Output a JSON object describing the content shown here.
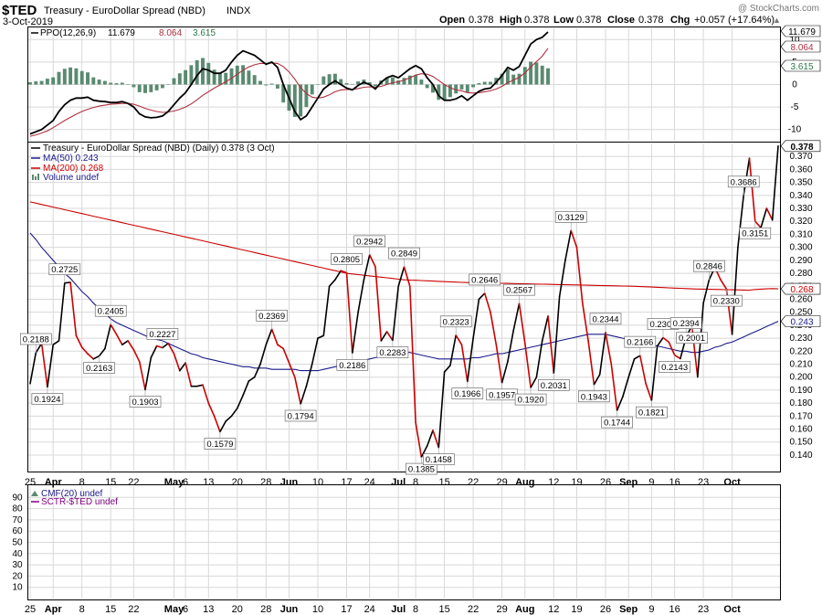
{
  "header": {
    "symbol": "$TED",
    "name": "Treasury - EuroDollar Spread (NBD)",
    "exchange": "INDX",
    "date": "3-Oct-2019",
    "watermark": "@ StockCharts.com",
    "ohlc": {
      "open_label": "Open",
      "open": "0.378",
      "high_label": "High",
      "high": "0.378",
      "low_label": "Low",
      "low": "0.378",
      "close_label": "Close",
      "close": "0.378",
      "chg_label": "Chg",
      "chg": "+0.057 (+17.64%)"
    },
    "chg_direction": "▲"
  },
  "colors": {
    "price_up": "#000000",
    "price_down": "#cc0000",
    "ma50": "#1a1a8c",
    "ma200": "#cc0000",
    "ppo_line": "#000000",
    "ppo_signal": "#b03040",
    "histogram": "#5a8a70",
    "grid": "#d8d8d8",
    "sctr": "#800080"
  },
  "chart_data": [
    {
      "type": "line",
      "panel": "ppo",
      "legend": "PPO(12,26,9) 11.679, 8.064, 3.615",
      "legend_parts": {
        "name": "PPO(12,26,9)",
        "ppo": "11.679",
        "signal": "8.064",
        "hist": "3.615"
      },
      "y_ticks": [
        -10,
        -5,
        0,
        5,
        10
      ],
      "ylim": [
        -12.5,
        12.5
      ],
      "last_values": {
        "ppo": "11.679",
        "signal": "8.064",
        "hist": "3.615"
      },
      "ppo": [
        -11,
        -10.5,
        -10,
        -9,
        -8,
        -6,
        -4.5,
        -3.5,
        -3,
        -3,
        -2.8,
        -3.5,
        -3.7,
        -3.8,
        -4,
        -4,
        -3.8,
        -4.2,
        -5,
        -6.5,
        -7.2,
        -7.4,
        -7.3,
        -7,
        -6,
        -4.5,
        -3,
        -1.8,
        0,
        2,
        3.5,
        3.2,
        2.5,
        2.5,
        3.2,
        5,
        6.5,
        7.5,
        7,
        6.5,
        5.5,
        4.5,
        5,
        3.8,
        0,
        -3,
        -6,
        -7.8,
        -7,
        -5,
        -3,
        -1,
        0,
        0.8,
        0,
        -0.8,
        -1.2,
        -0.2,
        0.5,
        0,
        -1,
        0.5,
        1.5,
        2,
        1.5,
        2.5,
        3.5,
        4.2,
        3.5,
        1.5,
        0,
        -2.5,
        -3.5,
        -3.5,
        -3.2,
        -2.5,
        -3.5,
        -2.5,
        -1.5,
        -1,
        -0.8,
        0.5,
        2,
        3.8,
        3.2,
        4,
        6.5,
        9,
        10,
        10.5,
        11.679
      ],
      "signal": [
        -11.5,
        -11.2,
        -10.8,
        -10.3,
        -9.6,
        -8.8,
        -8,
        -7.3,
        -6.6,
        -6,
        -5.5,
        -5.1,
        -4.8,
        -4.6,
        -4.4,
        -4.3,
        -4.2,
        -4.2,
        -4.4,
        -4.8,
        -5.3,
        -5.7,
        -6,
        -6.2,
        -6.1,
        -5.9,
        -5.5,
        -5,
        -4.3,
        -3.4,
        -2.4,
        -1.6,
        -0.8,
        -0.1,
        0.6,
        1.4,
        2.3,
        3.2,
        3.9,
        4.4,
        4.7,
        4.7,
        4.8,
        4.7,
        4,
        2.8,
        1.2,
        -0.7,
        -2,
        -2.8,
        -3,
        -2.8,
        -2.3,
        -1.6,
        -1.2,
        -1.1,
        -1.1,
        -0.9,
        -0.6,
        -0.5,
        -0.6,
        -0.4,
        0,
        0.4,
        0.6,
        1,
        1.5,
        2.1,
        2.4,
        2.3,
        1.8,
        0.9,
        0,
        -0.7,
        -1.2,
        -1.4,
        -1.8,
        -1.9,
        -1.8,
        -1.6,
        -1.4,
        -1,
        -0.4,
        0.4,
        1,
        1.6,
        2.6,
        3.9,
        5.1,
        6.3,
        8.064
      ]
    },
    {
      "type": "line",
      "panel": "price",
      "legend": "Treasury - EuroDollar Spread (NBD) (Daily) 0.378 (3 Oct)",
      "legend_ma50": "MA(50) 0.243",
      "legend_ma200": "MA(200) 0.268",
      "legend_volume": "Volume undef",
      "y_ticks": [
        0.14,
        0.15,
        0.16,
        0.17,
        0.18,
        0.19,
        0.2,
        0.21,
        0.22,
        0.23,
        0.24,
        0.25,
        0.26,
        0.27,
        0.28,
        0.29,
        0.3,
        0.31,
        0.32,
        0.33,
        0.34,
        0.35,
        0.36,
        0.37
      ],
      "ylim": [
        0.128,
        0.38
      ],
      "last_values": {
        "close": "0.378",
        "ma200": "0.268",
        "ma50": "0.243"
      },
      "price": [
        0.195,
        0.2188,
        0.226,
        0.1924,
        0.225,
        0.228,
        0.2725,
        0.273,
        0.232,
        0.223,
        0.218,
        0.214,
        0.2163,
        0.222,
        0.2405,
        0.233,
        0.225,
        0.228,
        0.221,
        0.212,
        0.1903,
        0.215,
        0.224,
        0.2227,
        0.226,
        0.218,
        0.205,
        0.211,
        0.193,
        0.193,
        0.194,
        0.18,
        0.17,
        0.1579,
        0.166,
        0.17,
        0.176,
        0.186,
        0.197,
        0.2,
        0.21,
        0.225,
        0.2369,
        0.225,
        0.222,
        0.211,
        0.2,
        0.1794,
        0.193,
        0.21,
        0.23,
        0.232,
        0.27,
        0.275,
        0.282,
        0.2805,
        0.2186,
        0.25,
        0.275,
        0.2942,
        0.285,
        0.228,
        0.235,
        0.2283,
        0.27,
        0.2849,
        0.27,
        0.165,
        0.1385,
        0.147,
        0.159,
        0.1458,
        0.204,
        0.209,
        0.2323,
        0.225,
        0.1966,
        0.23,
        0.26,
        0.2646,
        0.25,
        0.225,
        0.1957,
        0.212,
        0.236,
        0.2567,
        0.226,
        0.192,
        0.2,
        0.228,
        0.247,
        0.2031,
        0.262,
        0.29,
        0.3129,
        0.3,
        0.257,
        0.228,
        0.1943,
        0.202,
        0.2344,
        0.21,
        0.1744,
        0.185,
        0.2,
        0.214,
        0.2166,
        0.195,
        0.1821,
        0.224,
        0.2304,
        0.227,
        0.217,
        0.2143,
        0.231,
        0.2394,
        0.2001,
        0.257,
        0.275,
        0.2846,
        0.275,
        0.268,
        0.233,
        0.3,
        0.34,
        0.3686,
        0.32,
        0.3151,
        0.33,
        0.321,
        0.378
      ],
      "ma50": [
        0.311,
        0.306,
        0.3,
        0.295,
        0.29,
        0.285,
        0.28,
        0.276,
        0.271,
        0.266,
        0.262,
        0.257,
        0.253,
        0.249,
        0.245,
        0.242,
        0.24,
        0.238,
        0.236,
        0.234,
        0.232,
        0.23,
        0.229,
        0.228,
        0.226,
        0.224,
        0.222,
        0.22,
        0.218,
        0.217,
        0.215,
        0.214,
        0.213,
        0.212,
        0.211,
        0.21,
        0.209,
        0.208,
        0.208,
        0.207,
        0.207,
        0.207,
        0.206,
        0.206,
        0.206,
        0.206,
        0.206,
        0.205,
        0.205,
        0.205,
        0.205,
        0.206,
        0.207,
        0.208,
        0.209,
        0.21,
        0.211,
        0.212,
        0.213,
        0.214,
        0.215,
        0.216,
        0.216,
        0.217,
        0.218,
        0.219,
        0.219,
        0.218,
        0.217,
        0.216,
        0.215,
        0.214,
        0.214,
        0.214,
        0.214,
        0.214,
        0.214,
        0.215,
        0.215,
        0.216,
        0.217,
        0.218,
        0.218,
        0.219,
        0.22,
        0.221,
        0.222,
        0.223,
        0.224,
        0.225,
        0.226,
        0.227,
        0.228,
        0.229,
        0.23,
        0.231,
        0.232,
        0.233,
        0.233,
        0.233,
        0.233,
        0.232,
        0.231,
        0.23,
        0.229,
        0.228,
        0.227,
        0.226,
        0.225,
        0.224,
        0.223,
        0.222,
        0.221,
        0.22,
        0.22,
        0.219,
        0.219,
        0.22,
        0.221,
        0.223,
        0.224,
        0.226,
        0.227,
        0.229,
        0.231,
        0.233,
        0.235,
        0.237,
        0.239,
        0.241,
        0.243
      ],
      "ma200": [
        0.335,
        0.334,
        0.333,
        0.332,
        0.331,
        0.33,
        0.329,
        0.328,
        0.327,
        0.326,
        0.325,
        0.324,
        0.323,
        0.322,
        0.321,
        0.32,
        0.319,
        0.318,
        0.317,
        0.316,
        0.315,
        0.314,
        0.313,
        0.312,
        0.311,
        0.31,
        0.309,
        0.308,
        0.307,
        0.306,
        0.305,
        0.304,
        0.303,
        0.302,
        0.301,
        0.3,
        0.299,
        0.298,
        0.297,
        0.296,
        0.295,
        0.294,
        0.293,
        0.292,
        0.291,
        0.29,
        0.289,
        0.288,
        0.287,
        0.286,
        0.285,
        0.284,
        0.283,
        0.282,
        0.281,
        0.28,
        0.2795,
        0.279,
        0.2785,
        0.278,
        0.2775,
        0.277,
        0.2765,
        0.276,
        0.2755,
        0.275,
        0.2748,
        0.2746,
        0.2744,
        0.2742,
        0.274,
        0.2738,
        0.2736,
        0.2734,
        0.2732,
        0.273,
        0.2729,
        0.2728,
        0.2727,
        0.2726,
        0.2725,
        0.2724,
        0.2723,
        0.2722,
        0.2721,
        0.272,
        0.2719,
        0.2718,
        0.2717,
        0.2716,
        0.2715,
        0.2714,
        0.2713,
        0.2712,
        0.2711,
        0.271,
        0.2709,
        0.2708,
        0.2707,
        0.2706,
        0.2705,
        0.2704,
        0.2703,
        0.2702,
        0.2701,
        0.27,
        0.2698,
        0.2696,
        0.2694,
        0.2692,
        0.269,
        0.2688,
        0.2686,
        0.2684,
        0.2682,
        0.268,
        0.2679,
        0.2678,
        0.2677,
        0.2676,
        0.2675,
        0.2674,
        0.2673,
        0.2672,
        0.2671,
        0.267,
        0.2675,
        0.2678,
        0.268,
        0.2682,
        0.268
      ],
      "annotations": [
        {
          "i": 1,
          "label": "0.2188",
          "pos": "above"
        },
        {
          "i": 3,
          "label": "0.1924",
          "pos": "below"
        },
        {
          "i": 6,
          "label": "0.2725",
          "pos": "above"
        },
        {
          "i": 12,
          "label": "0.2163",
          "pos": "below"
        },
        {
          "i": 14,
          "label": "0.2405",
          "pos": "above"
        },
        {
          "i": 20,
          "label": "0.1903",
          "pos": "below"
        },
        {
          "i": 23,
          "label": "0.2227",
          "pos": "above"
        },
        {
          "i": 33,
          "label": "0.1579",
          "pos": "below"
        },
        {
          "i": 42,
          "label": "0.2369",
          "pos": "above"
        },
        {
          "i": 47,
          "label": "0.1794",
          "pos": "below"
        },
        {
          "i": 55,
          "label": "0.2805",
          "pos": "above"
        },
        {
          "i": 56,
          "label": "0.2186",
          "pos": "below"
        },
        {
          "i": 59,
          "label": "0.2942",
          "pos": "above"
        },
        {
          "i": 63,
          "label": "0.2283",
          "pos": "below"
        },
        {
          "i": 65,
          "label": "0.2849",
          "pos": "above"
        },
        {
          "i": 68,
          "label": "0.1385",
          "pos": "below"
        },
        {
          "i": 71,
          "label": "0.1458",
          "pos": "below"
        },
        {
          "i": 74,
          "label": "0.2323",
          "pos": "above"
        },
        {
          "i": 76,
          "label": "0.1966",
          "pos": "below"
        },
        {
          "i": 79,
          "label": "0.2646",
          "pos": "above"
        },
        {
          "i": 82,
          "label": "0.1957",
          "pos": "below"
        },
        {
          "i": 85,
          "label": "0.2567",
          "pos": "above"
        },
        {
          "i": 87,
          "label": "0.1920",
          "pos": "below"
        },
        {
          "i": 91,
          "label": "0.2031",
          "pos": "below"
        },
        {
          "i": 94,
          "label": "0.3129",
          "pos": "above"
        },
        {
          "i": 98,
          "label": "0.1943",
          "pos": "below"
        },
        {
          "i": 100,
          "label": "0.2344",
          "pos": "above"
        },
        {
          "i": 102,
          "label": "0.1744",
          "pos": "below"
        },
        {
          "i": 106,
          "label": "0.2166",
          "pos": "above"
        },
        {
          "i": 108,
          "label": "0.1821",
          "pos": "below"
        },
        {
          "i": 110,
          "label": "0.2304",
          "pos": "above"
        },
        {
          "i": 112,
          "label": "0.2143",
          "pos": "below"
        },
        {
          "i": 114,
          "label": "0.2394",
          "pos": "above"
        },
        {
          "i": 115,
          "label": "0.2001",
          "pos": "below"
        },
        {
          "i": 118,
          "label": "0.2846",
          "pos": "above"
        },
        {
          "i": 121,
          "label": "0.2330",
          "pos": "below"
        },
        {
          "i": 124,
          "label": "0.3686",
          "pos": "above"
        },
        {
          "i": 126,
          "label": "0.3151",
          "pos": "below"
        }
      ]
    },
    {
      "type": "line",
      "panel": "cmf",
      "legend_cmf": "CMF(20) undef",
      "legend_sctr": "SCTR-$TED undef",
      "y_ticks": [
        90,
        80,
        70,
        60,
        50,
        40,
        30,
        20,
        10
      ],
      "ylim": [
        0,
        100
      ]
    }
  ],
  "x_axis": {
    "ticks": [
      {
        "i": 0,
        "label": "25",
        "bold": false
      },
      {
        "i": 4,
        "label": "Apr",
        "bold": true
      },
      {
        "i": 9,
        "label": "8",
        "bold": false
      },
      {
        "i": 14,
        "label": "15",
        "bold": false
      },
      {
        "i": 18,
        "label": "22",
        "bold": false
      },
      {
        "i": 25,
        "label": "May",
        "bold": true
      },
      {
        "i": 27,
        "label": "6",
        "bold": false
      },
      {
        "i": 31,
        "label": "13",
        "bold": false
      },
      {
        "i": 36,
        "label": "20",
        "bold": false
      },
      {
        "i": 41,
        "label": "28",
        "bold": false
      },
      {
        "i": 45,
        "label": "Jun",
        "bold": true
      },
      {
        "i": 50,
        "label": "10",
        "bold": false
      },
      {
        "i": 55,
        "label": "17",
        "bold": false
      },
      {
        "i": 59,
        "label": "24",
        "bold": false
      },
      {
        "i": 64,
        "label": "Jul",
        "bold": true
      },
      {
        "i": 67,
        "label": "8",
        "bold": false
      },
      {
        "i": 72,
        "label": "15",
        "bold": false
      },
      {
        "i": 77,
        "label": "22",
        "bold": false
      },
      {
        "i": 82,
        "label": "29",
        "bold": false
      },
      {
        "i": 86,
        "label": "Aug",
        "bold": true
      },
      {
        "i": 91,
        "label": "12",
        "bold": false
      },
      {
        "i": 95,
        "label": "19",
        "bold": false
      },
      {
        "i": 100,
        "label": "26",
        "bold": false
      },
      {
        "i": 104,
        "label": "Sep",
        "bold": true
      },
      {
        "i": 108,
        "label": "9",
        "bold": false
      },
      {
        "i": 112,
        "label": "16",
        "bold": false
      },
      {
        "i": 117,
        "label": "23",
        "bold": false
      },
      {
        "i": 122,
        "label": "Oct",
        "bold": true
      }
    ]
  }
}
